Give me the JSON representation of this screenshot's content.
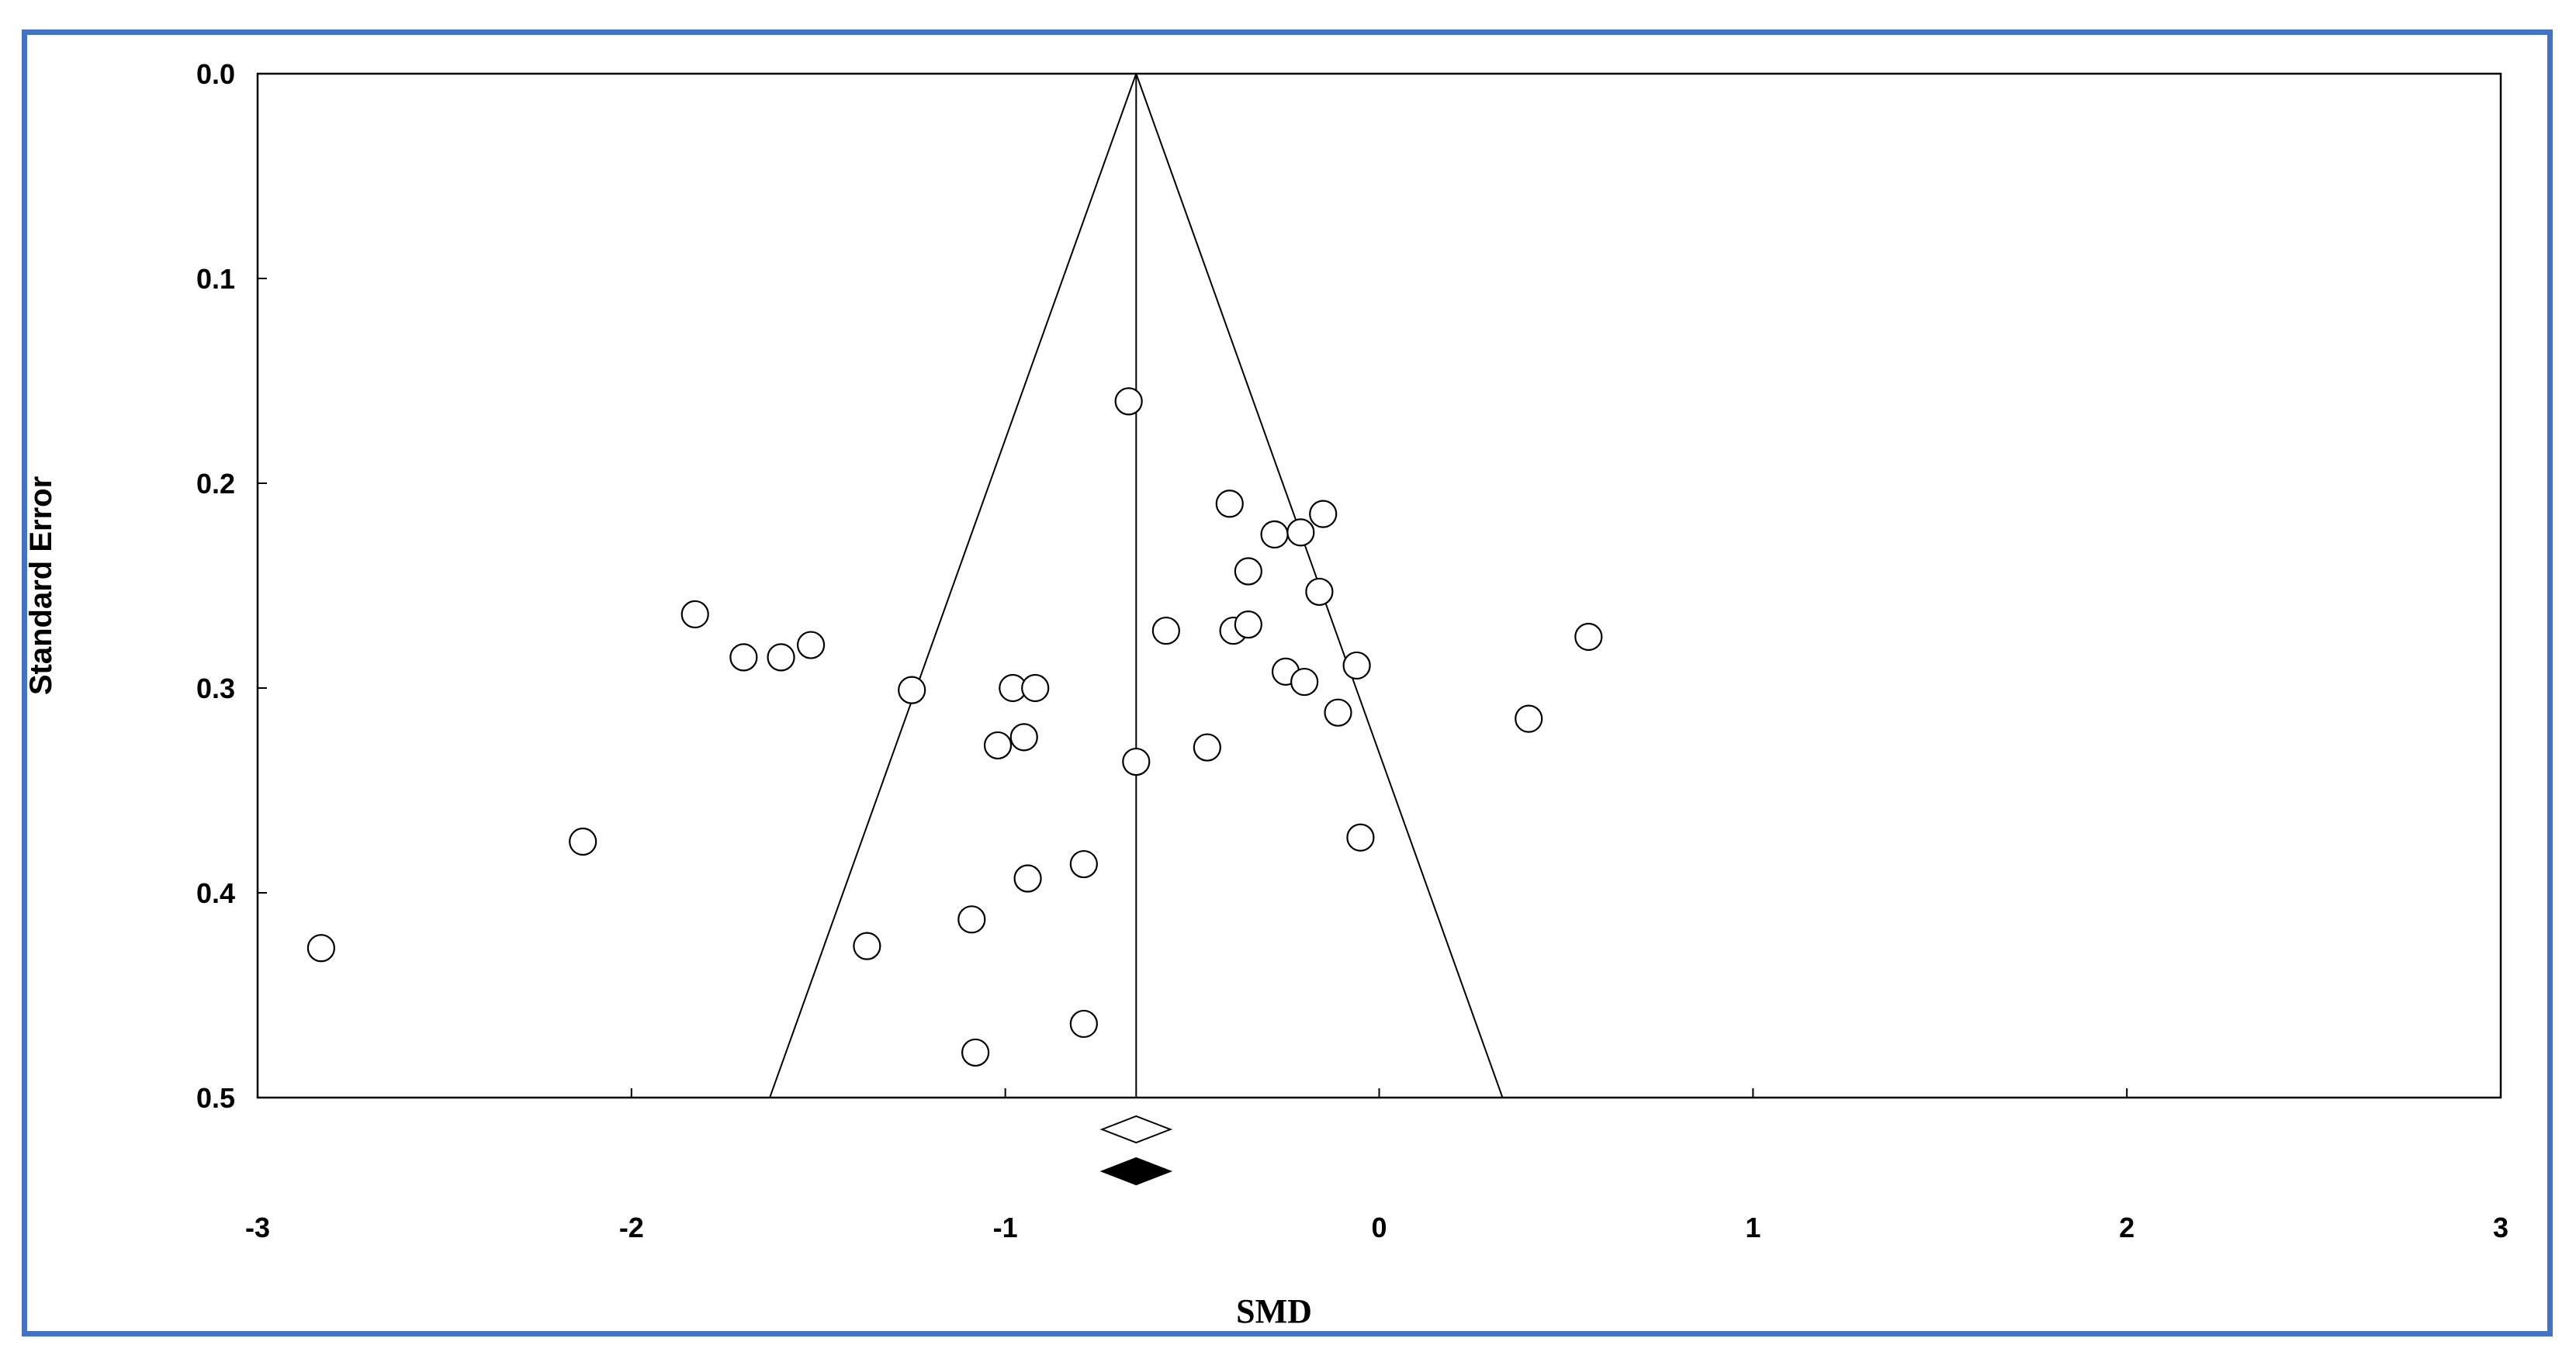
{
  "chart_data": {
    "type": "scatter",
    "title": "",
    "xlabel": "SMD",
    "ylabel": "Standard Error",
    "xlim": [
      -3,
      3
    ],
    "ylim": [
      0.0,
      0.5
    ],
    "y_inverted": true,
    "x_ticks": [
      "-3",
      "-2",
      "-1",
      "0",
      "1",
      "2",
      "3"
    ],
    "y_ticks": [
      "0.0",
      "0.1",
      "0.2",
      "0.3",
      "0.4",
      "0.5"
    ],
    "grid": false,
    "pooled_estimate": -0.65,
    "funnel_apex_se": 0.0,
    "funnel_bottom_x": [
      -1.63,
      0.33
    ],
    "summary_diamonds": [
      {
        "name": "observed",
        "x": -0.65,
        "fill": "#ffffff"
      },
      {
        "name": "adjusted",
        "x": -0.65,
        "fill": "#000000"
      }
    ],
    "points": [
      {
        "x": -0.67,
        "y": 0.16
      },
      {
        "x": -0.4,
        "y": 0.21
      },
      {
        "x": -0.15,
        "y": 0.215
      },
      {
        "x": -0.28,
        "y": 0.225
      },
      {
        "x": -0.21,
        "y": 0.224
      },
      {
        "x": -0.35,
        "y": 0.243
      },
      {
        "x": -0.16,
        "y": 0.253
      },
      {
        "x": -1.83,
        "y": 0.264
      },
      {
        "x": -0.57,
        "y": 0.272
      },
      {
        "x": -0.39,
        "y": 0.272
      },
      {
        "x": -0.35,
        "y": 0.269
      },
      {
        "x": 0.56,
        "y": 0.275
      },
      {
        "x": -1.52,
        "y": 0.279
      },
      {
        "x": -1.7,
        "y": 0.285
      },
      {
        "x": -1.6,
        "y": 0.285
      },
      {
        "x": -0.06,
        "y": 0.289
      },
      {
        "x": -0.25,
        "y": 0.292
      },
      {
        "x": -0.2,
        "y": 0.297
      },
      {
        "x": -1.25,
        "y": 0.301
      },
      {
        "x": -0.98,
        "y": 0.3
      },
      {
        "x": -0.92,
        "y": 0.3
      },
      {
        "x": -0.11,
        "y": 0.312
      },
      {
        "x": 0.4,
        "y": 0.315
      },
      {
        "x": -0.95,
        "y": 0.324
      },
      {
        "x": -1.02,
        "y": 0.328
      },
      {
        "x": -0.46,
        "y": 0.329
      },
      {
        "x": -0.65,
        "y": 0.336
      },
      {
        "x": -2.13,
        "y": 0.375
      },
      {
        "x": -0.05,
        "y": 0.373
      },
      {
        "x": -0.79,
        "y": 0.386
      },
      {
        "x": -0.94,
        "y": 0.393
      },
      {
        "x": -1.09,
        "y": 0.413
      },
      {
        "x": -1.37,
        "y": 0.426
      },
      {
        "x": -2.83,
        "y": 0.427
      },
      {
        "x": -0.79,
        "y": 0.464
      },
      {
        "x": -1.08,
        "y": 0.478
      }
    ],
    "colors": {
      "frame_border": "#4472c4",
      "axis": "#000000",
      "marker_stroke": "#000000",
      "marker_fill": "#ffffff"
    }
  }
}
